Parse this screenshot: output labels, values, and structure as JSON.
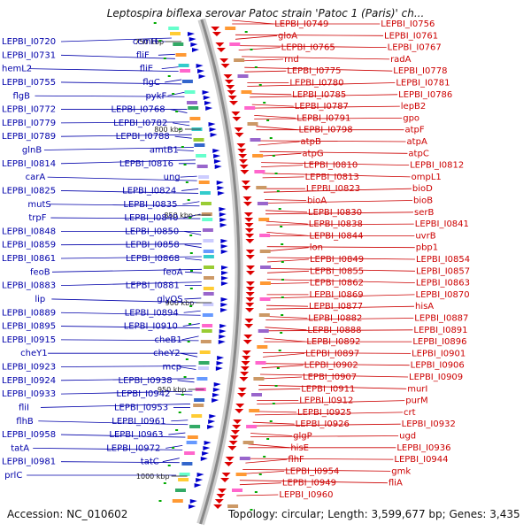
{
  "title": "Leptospira biflexa serovar Patoc strain 'Patoc 1 (Paris)' ch...",
  "footer": {
    "accession": "Accession: NC_010602",
    "topology": "Topology: circular; Length: 3,599,677 bp; Genes: 3,435"
  },
  "colors": {
    "forward_strand": "#0000cc",
    "reverse_strand": "#dd0000",
    "backbone": "#888888",
    "label_left": "#0000aa",
    "label_right": "#cc0000",
    "tick": "#00aa00"
  },
  "ticks": [
    "750 kbp",
    "800 kbp",
    "850 kbp",
    "900 kbp",
    "950 kbp",
    "1000 kbp"
  ],
  "left_labels": [
    "LEPBI_I0720",
    "ccmH",
    "LEPBI_I0731",
    "fliF",
    "hemL2",
    "fliE",
    "LEPBI_I0755",
    "flgC",
    "flgB",
    "pykF",
    "LEPBI_I0772",
    "LEPBI_I0768",
    "LEPBI_I0779",
    "LEPBI_I0782",
    "LEPBI_I0789",
    "LEPBI_I0788",
    "glnB",
    "amtB1",
    "LEPBI_I0814",
    "LEPBI_I0816",
    "carA",
    "ung",
    "LEPBI_I0825",
    "LEPBI_I0824",
    "mutS",
    "LEPBI_I0835",
    "trpF",
    "LEPBI_I0840",
    "LEPBI_I0848",
    "LEPBI_I0850",
    "LEPBI_I0859",
    "LEPBI_I0858",
    "LEPBI_I0861",
    "LEPBI_I0868",
    "feoB",
    "feoA",
    "LEPBI_I0883",
    "LEPBI_I0881",
    "lip",
    "glyQS",
    "LEPBI_I0889",
    "LEPBI_I0894",
    "LEPBI_I0895",
    "LEPBI_I0910",
    "LEPBI_I0915",
    "cheB1",
    "cheY1",
    "cheY2",
    "LEPBI_I0923",
    "mcp",
    "LEPBI_I0924",
    "LEPBI_I0938",
    "LEPBI_I0933",
    "LEPBI_I0942",
    "fliI",
    "LEPBI_I0953",
    "flhB",
    "LEPBI_I0961",
    "LEPBI_I0958",
    "LEPBI_I0963",
    "tatA",
    "LEPBI_I0972",
    "LEPBI_I0981",
    "tatC",
    "prlC"
  ],
  "right_labels": [
    "LEPBI_I0749",
    "LEPBI_I0756",
    "gloA",
    "LEPBI_I0761",
    "LEPBI_I0765",
    "LEPBI_I0767",
    "rnd",
    "radA",
    "LEPBI_I0775",
    "LEPBI_I0778",
    "LEPBI_I0780",
    "LEPBI_I0781",
    "LEPBI_I0785",
    "LEPBI_I0786",
    "LEPBI_I0787",
    "lepB2",
    "LEPBI_I0791",
    "gpo",
    "LEPBI_I0798",
    "atpF",
    "atpB",
    "atpA",
    "atpG",
    "atpC",
    "LEPBI_I0810",
    "LEPBI_I0812",
    "LEPBI_I0813",
    "ompL1",
    "LEPBI_I0823",
    "bioD",
    "bioA",
    "bioB",
    "LEPBI_I0830",
    "serB",
    "LEPBI_I0838",
    "LEPBI_I0841",
    "LEPBI_I0844",
    "uvrB",
    "lon",
    "pbp1",
    "LEPBI_I0849",
    "LEPBI_I0854",
    "LEPBI_I0855",
    "LEPBI_I0857",
    "LEPBI_I0862",
    "LEPBI_I0863",
    "LEPBI_I0869",
    "LEPBI_I0870",
    "LEPBI_I0877",
    "hisA",
    "LEPBI_I0882",
    "LEPBI_I0887",
    "LEPBI_I0888",
    "LEPBI_I0891",
    "LEPBI_I0892",
    "LEPBI_I0896",
    "LEPBI_I0897",
    "LEPBI_I0901",
    "LEPBI_I0902",
    "LEPBI_I0906",
    "LEPBI_I0907",
    "LEPBI_I0909",
    "LEPBI_I0911",
    "murI",
    "LEPBI_I0912",
    "purM",
    "LEPBI_I0925",
    "crt",
    "LEPBI_I0926",
    "LEPBI_I0932",
    "glgP",
    "ugd",
    "hisE",
    "LEPBI_I0936",
    "flhF",
    "LEPBI_I0944",
    "LEPBI_I0954",
    "gmk",
    "LEPBI_I0949",
    "fliA",
    "LEPBI_I0960"
  ]
}
